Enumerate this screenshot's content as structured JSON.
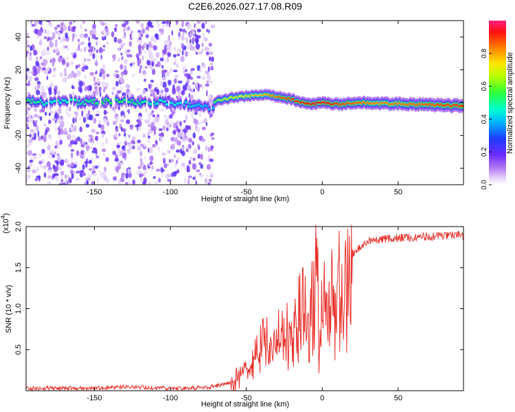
{
  "title": "C2E6.2026.027.17.08.R09",
  "colors": {
    "line": "#e8302a",
    "axis": "#000000"
  },
  "chart_data": [
    {
      "type": "heatmap",
      "xlabel": "Height of straight line (km)",
      "ylabel": "Frequency (Hz)",
      "xlim": [
        -195,
        93
      ],
      "ylim": [
        -50,
        50
      ],
      "xticks": [
        -150,
        -100,
        -50,
        0,
        50
      ],
      "yticks": [
        -40,
        -20,
        0,
        20,
        40
      ],
      "colorbar": {
        "label": "Normalized spectral amplitude",
        "range": [
          0.0,
          1.0
        ],
        "ticks": [
          0.0,
          0.2,
          0.4,
          0.6,
          0.8
        ]
      },
      "ridge": [
        {
          "x": -195,
          "f": 0.5,
          "a": 0.55
        },
        {
          "x": -180,
          "f": 0.0,
          "a": 0.45
        },
        {
          "x": -160,
          "f": 0.5,
          "a": 0.5
        },
        {
          "x": -140,
          "f": 1.0,
          "a": 0.55
        },
        {
          "x": -120,
          "f": 0.5,
          "a": 0.5
        },
        {
          "x": -100,
          "f": 0.0,
          "a": 0.45
        },
        {
          "x": -80,
          "f": -2.0,
          "a": 0.4
        },
        {
          "x": -72,
          "f": -3.0,
          "a": 0.35
        },
        {
          "x": -70,
          "f": 1.0,
          "a": 0.6
        },
        {
          "x": -60,
          "f": 3.0,
          "a": 0.7
        },
        {
          "x": -50,
          "f": 4.0,
          "a": 0.75
        },
        {
          "x": -40,
          "f": 5.0,
          "a": 0.78
        },
        {
          "x": -30,
          "f": 4.0,
          "a": 0.85
        },
        {
          "x": -20,
          "f": 2.0,
          "a": 0.9
        },
        {
          "x": -10,
          "f": -1.0,
          "a": 0.92
        },
        {
          "x": 0,
          "f": 0.0,
          "a": 0.95
        },
        {
          "x": 10,
          "f": -1.0,
          "a": 0.9
        },
        {
          "x": 25,
          "f": 0.0,
          "a": 0.85
        },
        {
          "x": 40,
          "f": -0.5,
          "a": 0.82
        },
        {
          "x": 60,
          "f": -1.0,
          "a": 0.85
        },
        {
          "x": 80,
          "f": -1.5,
          "a": 0.88
        },
        {
          "x": 93,
          "f": -2.0,
          "a": 0.9
        }
      ],
      "noise_regions": [
        [
          -195,
          -141
        ],
        [
          -138,
          -124
        ],
        [
          -122,
          -72
        ]
      ]
    },
    {
      "type": "line",
      "xlabel": "Height of straight line (km)",
      "ylabel": "SNR (10 * v/v)",
      "multiplier": "(x10",
      "multiplier_exp": "4",
      "xlim": [
        -195,
        93
      ],
      "ylim": [
        0,
        2.0
      ],
      "xticks": [
        -150,
        -100,
        -50,
        0,
        50
      ],
      "yticks": [
        0.5,
        1.0,
        1.5,
        2.0
      ],
      "series": [
        {
          "x": [
            -195,
            -150,
            -130,
            -100,
            -75,
            -60,
            -55,
            -50,
            -45,
            -40,
            -35,
            -30,
            -25,
            -20,
            -15,
            -10,
            -5,
            -3,
            -2,
            0,
            5,
            10,
            15,
            20,
            25,
            30,
            40,
            50,
            60,
            70,
            80,
            90,
            93
          ],
          "y": [
            0.03,
            0.03,
            0.05,
            0.03,
            0.04,
            0.1,
            0.2,
            0.3,
            0.45,
            0.6,
            0.65,
            0.75,
            0.8,
            0.9,
            1.0,
            1.1,
            1.3,
            1.9,
            0.3,
            1.2,
            1.25,
            1.35,
            1.5,
            1.65,
            1.75,
            1.82,
            1.85,
            1.86,
            1.87,
            1.88,
            1.89,
            1.9,
            1.88
          ]
        }
      ]
    }
  ]
}
